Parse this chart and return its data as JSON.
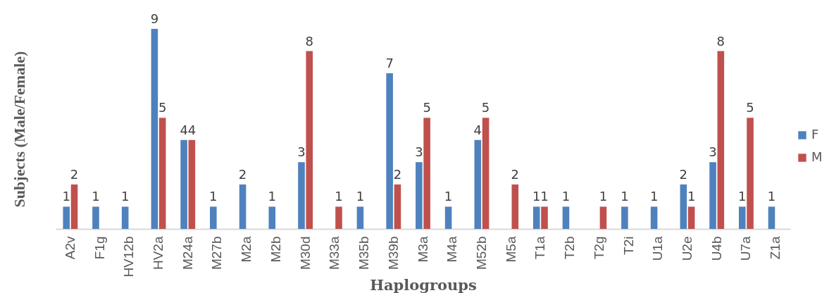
{
  "chart_data": {
    "type": "bar",
    "xlabel": "Haplogroups",
    "ylabel": "Subjects (Male/Female)",
    "categories": [
      "A2v",
      "F1g",
      "HV12b",
      "HV2a",
      "M24a",
      "M27b",
      "M2a",
      "M2b",
      "M30d",
      "M33a",
      "M35b",
      "M39b",
      "M3a",
      "M4a",
      "M52b",
      "M5a",
      "T1a",
      "T2b",
      "T2g",
      "T2i",
      "U1a",
      "U2e",
      "U4b",
      "U7a",
      "Z1a"
    ],
    "series": [
      {
        "name": "F",
        "color": "#4f81bd",
        "values": [
          1,
          1,
          1,
          9,
          4,
          1,
          2,
          1,
          3,
          null,
          1,
          7,
          3,
          1,
          4,
          null,
          1,
          1,
          null,
          1,
          1,
          2,
          3,
          1,
          1
        ]
      },
      {
        "name": "M",
        "color": "#c0504d",
        "values": [
          2,
          null,
          null,
          5,
          4,
          null,
          null,
          null,
          8,
          1,
          null,
          2,
          5,
          null,
          5,
          2,
          1,
          null,
          1,
          null,
          null,
          1,
          8,
          5,
          null
        ]
      }
    ],
    "data_labels": true,
    "legend": "right",
    "tick_labels": "x"
  }
}
